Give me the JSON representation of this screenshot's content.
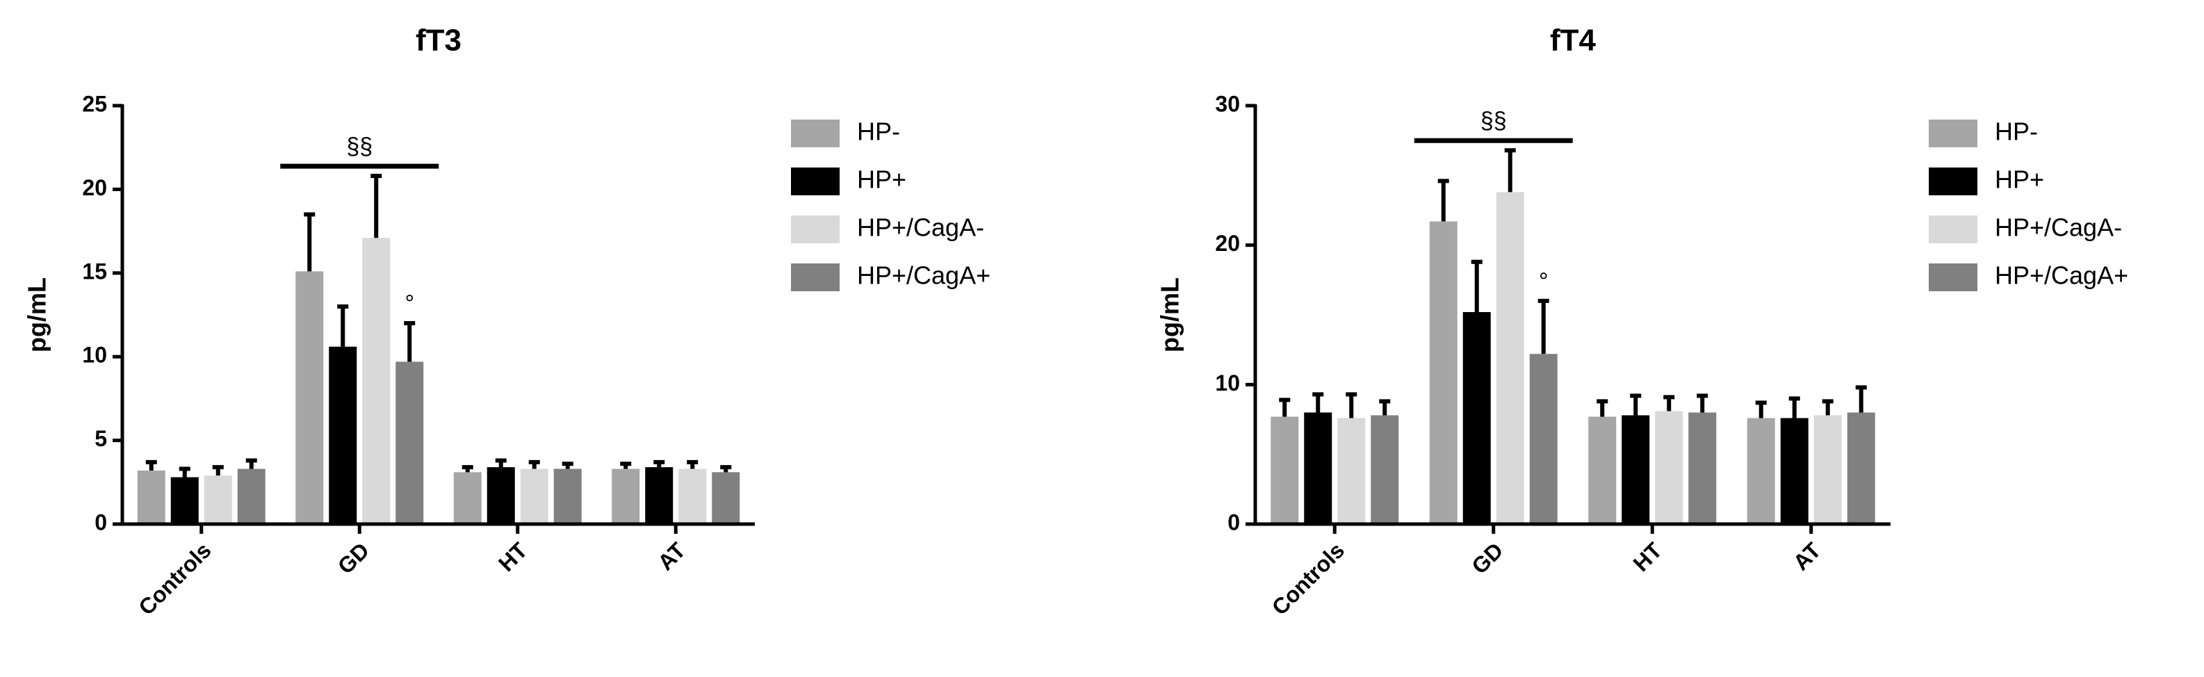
{
  "chart_data": [
    {
      "type": "bar",
      "title": "fT3",
      "y_label": "pg/mL",
      "categories": [
        "Controls",
        "GD",
        "HT",
        "AT"
      ],
      "ylim": [
        0,
        25
      ],
      "yticks": [
        0,
        5,
        10,
        15,
        20,
        25
      ],
      "series": [
        {
          "name": "HP-",
          "color": "#a6a6a6",
          "values": [
            3.2,
            15.1,
            3.1,
            3.3
          ],
          "errors": [
            0.5,
            3.4,
            0.3,
            0.3
          ]
        },
        {
          "name": "HP+",
          "color": "#000000",
          "values": [
            2.8,
            10.6,
            3.4,
            3.4
          ],
          "errors": [
            0.5,
            2.4,
            0.4,
            0.3
          ]
        },
        {
          "name": "HP+/CagA-",
          "color": "#d9d9d9",
          "values": [
            2.9,
            17.1,
            3.3,
            3.3
          ],
          "errors": [
            0.5,
            3.7,
            0.4,
            0.4
          ]
        },
        {
          "name": "HP+/CagA+",
          "color": "#808080",
          "values": [
            3.3,
            9.7,
            3.3,
            3.1
          ],
          "errors": [
            0.5,
            2.3,
            0.3,
            0.3
          ]
        }
      ],
      "annotations": [
        {
          "text": "§§",
          "category": "GD"
        },
        {
          "text": "°",
          "category": "GD",
          "series": "HP+/CagA+"
        }
      ]
    },
    {
      "type": "bar",
      "title": "fT4",
      "y_label": "pg/mL",
      "categories": [
        "Controls",
        "GD",
        "HT",
        "AT"
      ],
      "ylim": [
        0,
        30
      ],
      "yticks": [
        0,
        10,
        20,
        30
      ],
      "series": [
        {
          "name": "HP-",
          "color": "#a6a6a6",
          "values": [
            7.7,
            21.7,
            7.7,
            7.6
          ],
          "errors": [
            1.2,
            2.9,
            1.1,
            1.1
          ]
        },
        {
          "name": "HP+",
          "color": "#000000",
          "values": [
            8.0,
            15.2,
            7.8,
            7.6
          ],
          "errors": [
            1.3,
            3.6,
            1.4,
            1.4
          ]
        },
        {
          "name": "HP+/CagA-",
          "color": "#d9d9d9",
          "values": [
            7.6,
            23.8,
            8.1,
            7.8
          ],
          "errors": [
            1.7,
            3.0,
            1.0,
            1.0
          ]
        },
        {
          "name": "HP+/CagA+",
          "color": "#808080",
          "values": [
            7.8,
            12.2,
            8.0,
            8.0
          ],
          "errors": [
            1.0,
            3.8,
            1.2,
            1.8
          ]
        }
      ],
      "annotations": [
        {
          "text": "§§",
          "category": "GD"
        },
        {
          "text": "°",
          "category": "GD",
          "series": "HP+/CagA+"
        }
      ]
    }
  ]
}
